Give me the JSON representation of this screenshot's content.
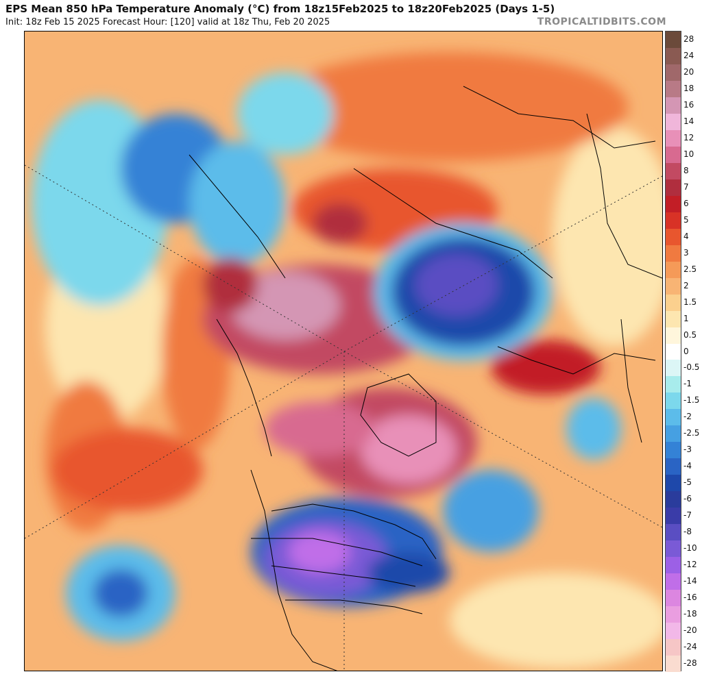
{
  "header": {
    "title": "EPS Mean 850 hPa Temperature Anomaly (°C) from 18z15Feb2025 to 18z20Feb2025 (Days 1-5)",
    "subtitle": "Init: 18z Feb 15 2025   Forecast Hour: [120]   valid at 18z Thu, Feb 20 2025",
    "brand": "TROPICALTIDBITS.COM"
  },
  "colorbar": {
    "levels": [
      {
        "label": "28",
        "color": "#6b4a3a"
      },
      {
        "label": "24",
        "color": "#8a5a52"
      },
      {
        "label": "20",
        "color": "#a0686a"
      },
      {
        "label": "18",
        "color": "#b87a86"
      },
      {
        "label": "16",
        "color": "#d496b4"
      },
      {
        "label": "14",
        "color": "#f0b6da"
      },
      {
        "label": "12",
        "color": "#e890b8"
      },
      {
        "label": "10",
        "color": "#d86a90"
      },
      {
        "label": "8",
        "color": "#c24a62"
      },
      {
        "label": "7",
        "color": "#b02e3e"
      },
      {
        "label": "6",
        "color": "#c21e26"
      },
      {
        "label": "5",
        "color": "#d83226"
      },
      {
        "label": "4",
        "color": "#e8562e"
      },
      {
        "label": "3",
        "color": "#f07a40"
      },
      {
        "label": "2.5",
        "color": "#f59a58"
      },
      {
        "label": "2",
        "color": "#f8b474"
      },
      {
        "label": "1.5",
        "color": "#fbd08e"
      },
      {
        "label": "1",
        "color": "#fde6b0"
      },
      {
        "label": "0.5",
        "color": "#fff6dc"
      },
      {
        "label": "0",
        "color": "#ffffff"
      },
      {
        "label": "-0.5",
        "color": "#dcf6f6"
      },
      {
        "label": "-1",
        "color": "#a8ecec"
      },
      {
        "label": "-1.5",
        "color": "#7cd8ec"
      },
      {
        "label": "-2",
        "color": "#5cbcea"
      },
      {
        "label": "-2.5",
        "color": "#46a0e2"
      },
      {
        "label": "-3",
        "color": "#3482d6"
      },
      {
        "label": "-4",
        "color": "#2a64c4"
      },
      {
        "label": "-5",
        "color": "#1e48aa"
      },
      {
        "label": "-6",
        "color": "#2a3c9c"
      },
      {
        "label": "-7",
        "color": "#3a3ca8"
      },
      {
        "label": "-8",
        "color": "#5a4ec2"
      },
      {
        "label": "-10",
        "color": "#7a5ad6"
      },
      {
        "label": "-12",
        "color": "#9c60e6"
      },
      {
        "label": "-14",
        "color": "#c06ee8"
      },
      {
        "label": "-16",
        "color": "#dc86e0"
      },
      {
        "label": "-18",
        "color": "#ea9ee0"
      },
      {
        "label": "-20",
        "color": "#f2b8e8"
      },
      {
        "label": "-24",
        "color": "#f6c6c6"
      },
      {
        "label": "-28",
        "color": "#fadcd0"
      }
    ]
  },
  "map": {
    "projection": "north-polar-stereographic",
    "features": [
      {
        "name": "north-pacific-warm-anomaly",
        "color": "#f07a40"
      },
      {
        "name": "central-pacific-cold-anomaly",
        "color": "#3482d6"
      },
      {
        "name": "siberia-cold-anomaly",
        "color": "#5cbcea"
      },
      {
        "name": "arctic-warm-anomaly",
        "color": "#c24a62"
      },
      {
        "name": "greenland-warm-anomaly",
        "color": "#e890b8"
      },
      {
        "name": "russia-cold-anomaly",
        "color": "#1e48aa"
      },
      {
        "name": "north-america-cold-anomaly",
        "color": "#9c60e6"
      },
      {
        "name": "north-atlantic-cold-anomaly",
        "color": "#46a0e2"
      },
      {
        "name": "europe-warm-anomaly",
        "color": "#d83226"
      }
    ]
  }
}
